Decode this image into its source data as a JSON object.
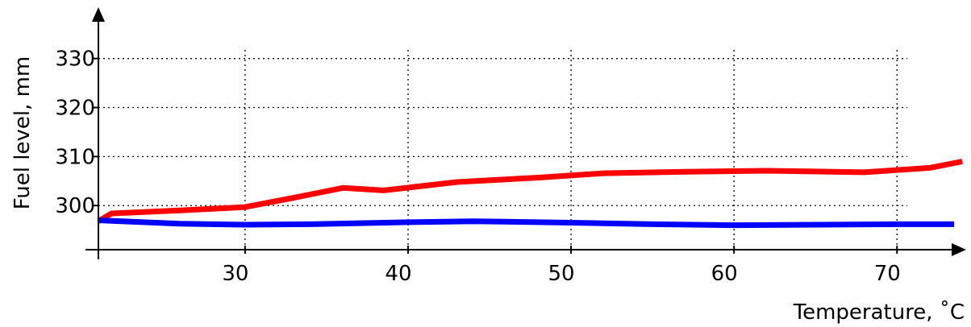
{
  "chart_data": {
    "type": "line",
    "title": "",
    "xlabel": "Temperature, ˚C",
    "ylabel": "Fuel level, mm",
    "xlim": [
      21,
      73.5
    ],
    "ylim": [
      291,
      338
    ],
    "x_ticks": [
      30,
      40,
      50,
      60,
      70
    ],
    "y_ticks": [
      300,
      310,
      320,
      330
    ],
    "grid": true,
    "grid_style": "dotted",
    "legend": "none",
    "series": [
      {
        "color": "#ff0000",
        "x": [
          21,
          21.8,
          26,
          30,
          33,
          36,
          38.5,
          43,
          48,
          52,
          57,
          62,
          68,
          72,
          74
        ],
        "y": [
          296.8,
          298.4,
          299.0,
          299.7,
          301.6,
          303.6,
          303.1,
          304.8,
          305.7,
          306.6,
          306.9,
          307.1,
          306.8,
          307.7,
          309.0
        ]
      },
      {
        "color": "#0000ff",
        "x": [
          21,
          26,
          30,
          34,
          40,
          44,
          50,
          55,
          60,
          65,
          70,
          73.5
        ],
        "y": [
          297.0,
          296.3,
          296.1,
          296.2,
          296.6,
          296.8,
          296.5,
          296.2,
          296.0,
          296.1,
          296.2,
          296.2
        ]
      }
    ]
  }
}
